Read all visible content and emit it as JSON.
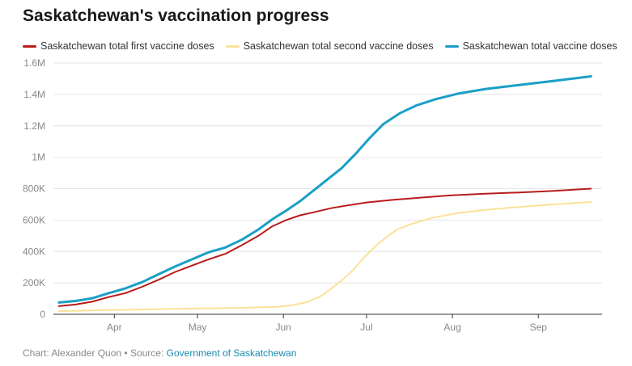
{
  "header": {
    "title": "Saskatchewan's vaccination progress"
  },
  "footer": {
    "credit": "Chart: Alexander Quon • Source: ",
    "source_link": "Government of Saskatchewan"
  },
  "chart_data": {
    "type": "line",
    "title": "Saskatchewan's vaccination progress",
    "xlabel": "",
    "ylabel": "",
    "x_domain": [
      "2021-03-10",
      "2021-09-24"
    ],
    "ylim": [
      0,
      1600000
    ],
    "y_ticks": [
      0,
      200000,
      400000,
      600000,
      800000,
      1000000,
      1200000,
      1400000,
      1600000
    ],
    "y_tick_labels": [
      "0",
      "200K",
      "400K",
      "600K",
      "800K",
      "1M",
      "1.2M",
      "1.4M",
      "1.6M"
    ],
    "x_ticks": [
      "2021-04-01",
      "2021-05-01",
      "2021-06-01",
      "2021-07-01",
      "2021-08-01",
      "2021-09-01"
    ],
    "x_tick_labels": [
      "Apr",
      "May",
      "Jun",
      "Jul",
      "Aug",
      "Sep"
    ],
    "grid": "horizontal",
    "legend_position": "top",
    "series": [
      {
        "name": "Saskatchewan total first vaccine doses",
        "color": "#b71c1c",
        "points": [
          [
            "2021-03-12",
            52000
          ],
          [
            "2021-03-18",
            62000
          ],
          [
            "2021-03-24",
            80000
          ],
          [
            "2021-03-30",
            110000
          ],
          [
            "2021-04-05",
            135000
          ],
          [
            "2021-04-11",
            175000
          ],
          [
            "2021-04-17",
            220000
          ],
          [
            "2021-04-23",
            270000
          ],
          [
            "2021-04-29",
            310000
          ],
          [
            "2021-05-05",
            350000
          ],
          [
            "2021-05-11",
            385000
          ],
          [
            "2021-05-17",
            440000
          ],
          [
            "2021-05-23",
            500000
          ],
          [
            "2021-05-28",
            560000
          ],
          [
            "2021-06-02",
            600000
          ],
          [
            "2021-06-07",
            630000
          ],
          [
            "2021-06-12",
            650000
          ],
          [
            "2021-06-18",
            675000
          ],
          [
            "2021-06-24",
            693000
          ],
          [
            "2021-07-01",
            712000
          ],
          [
            "2021-07-10",
            728000
          ],
          [
            "2021-07-20",
            742000
          ],
          [
            "2021-07-31",
            757000
          ],
          [
            "2021-08-12",
            767000
          ],
          [
            "2021-08-25",
            776000
          ],
          [
            "2021-09-06",
            785000
          ],
          [
            "2021-09-20",
            800000
          ]
        ]
      },
      {
        "name": "Saskatchewan total second vaccine doses",
        "color": "#fbe29a",
        "points": [
          [
            "2021-03-12",
            20000
          ],
          [
            "2021-03-25",
            25000
          ],
          [
            "2021-04-08",
            30000
          ],
          [
            "2021-04-22",
            35000
          ],
          [
            "2021-05-06",
            38000
          ],
          [
            "2021-05-20",
            42000
          ],
          [
            "2021-05-30",
            48000
          ],
          [
            "2021-06-04",
            57000
          ],
          [
            "2021-06-09",
            75000
          ],
          [
            "2021-06-14",
            110000
          ],
          [
            "2021-06-18",
            160000
          ],
          [
            "2021-06-22",
            215000
          ],
          [
            "2021-06-26",
            280000
          ],
          [
            "2021-06-30",
            360000
          ],
          [
            "2021-07-04",
            430000
          ],
          [
            "2021-07-08",
            490000
          ],
          [
            "2021-07-12",
            540000
          ],
          [
            "2021-07-18",
            580000
          ],
          [
            "2021-07-25",
            615000
          ],
          [
            "2021-08-03",
            645000
          ],
          [
            "2021-08-14",
            667000
          ],
          [
            "2021-08-26",
            685000
          ],
          [
            "2021-09-07",
            700000
          ],
          [
            "2021-09-20",
            715000
          ]
        ]
      },
      {
        "name": "Saskatchewan total vaccine doses",
        "color": "#1b9fc6",
        "points": [
          [
            "2021-03-12",
            75000
          ],
          [
            "2021-03-18",
            85000
          ],
          [
            "2021-03-24",
            102000
          ],
          [
            "2021-03-30",
            135000
          ],
          [
            "2021-04-05",
            165000
          ],
          [
            "2021-04-11",
            205000
          ],
          [
            "2021-04-17",
            255000
          ],
          [
            "2021-04-23",
            305000
          ],
          [
            "2021-04-29",
            350000
          ],
          [
            "2021-05-05",
            395000
          ],
          [
            "2021-05-11",
            425000
          ],
          [
            "2021-05-17",
            475000
          ],
          [
            "2021-05-23",
            540000
          ],
          [
            "2021-05-28",
            605000
          ],
          [
            "2021-06-02",
            660000
          ],
          [
            "2021-06-07",
            720000
          ],
          [
            "2021-06-12",
            790000
          ],
          [
            "2021-06-17",
            860000
          ],
          [
            "2021-06-22",
            930000
          ],
          [
            "2021-06-27",
            1020000
          ],
          [
            "2021-07-02",
            1120000
          ],
          [
            "2021-07-07",
            1210000
          ],
          [
            "2021-07-13",
            1280000
          ],
          [
            "2021-07-19",
            1330000
          ],
          [
            "2021-07-26",
            1370000
          ],
          [
            "2021-08-03",
            1405000
          ],
          [
            "2021-08-13",
            1435000
          ],
          [
            "2021-08-25",
            1460000
          ],
          [
            "2021-09-06",
            1485000
          ],
          [
            "2021-09-20",
            1515000
          ]
        ]
      }
    ]
  }
}
